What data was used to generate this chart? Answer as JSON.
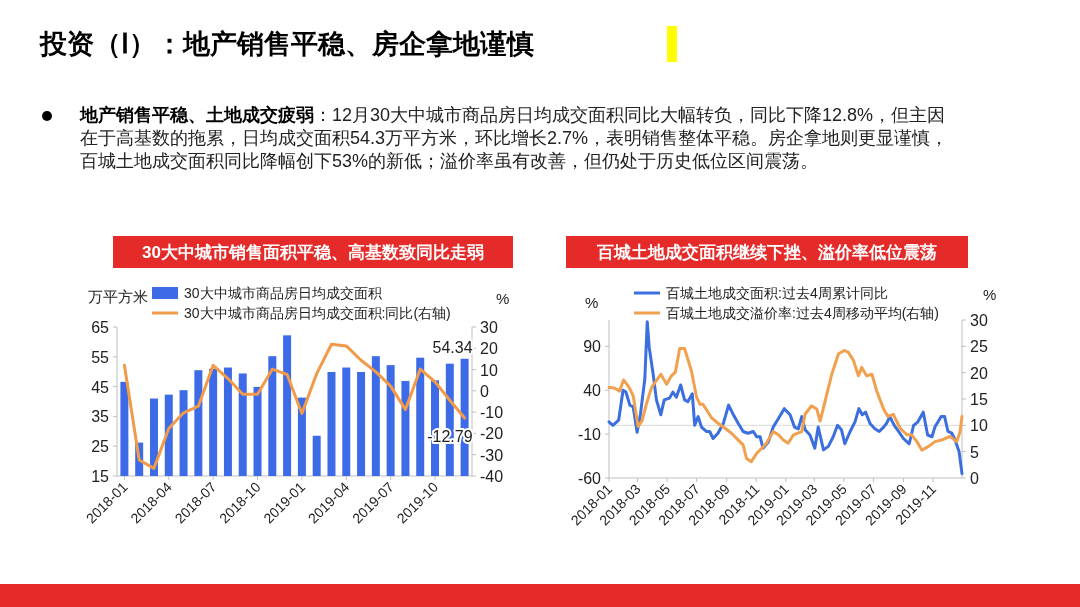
{
  "chart_data": [
    {
      "type": "other",
      "title": "投资（Ⅰ）：地产销售平稳、房企拿地谨慎",
      "annotations": [
        "地产销售平稳、土地成交疲弱",
        "：12月30大中城市商品房日均成交面积同比大幅转负，同比下降12.8%，但主因在于高基数的拖累，日均成交面积54.3万平方米，环比增长2.7%，表明销售整体平稳。房企拿地则更显谨慎，百城土地成交面积同比降幅创下53%的新低；溢价率虽有改善，但仍处于历史低位区间震荡。"
      ]
    },
    {
      "type": "bar",
      "title": "30大中城市销售面积平稳、高基数致同比走弱",
      "ylabel": "万平方米",
      "y2label": "%",
      "legend": "top",
      "categories": [
        "2018-01",
        null,
        null,
        "2018-04",
        null,
        null,
        "2018-07",
        null,
        null,
        "2018-10",
        null,
        null,
        "2019-01",
        null,
        null,
        "2019-04",
        null,
        null,
        "2019-07",
        null,
        null,
        "2019-10",
        null,
        null
      ],
      "ylim": [
        15,
        65
      ],
      "yticks": [
        15,
        25,
        35,
        45,
        55,
        65
      ],
      "y2lim": [
        -40,
        30
      ],
      "y2ticks": [
        -40,
        -30,
        -20,
        -10,
        0,
        10,
        20,
        30
      ],
      "series": [
        {
          "name": "30大中城市商品房日均成交面积",
          "type": "bar",
          "color": "#3d6ae6",
          "values": [
            46.6,
            26.2,
            41,
            42.3,
            43.8,
            50.5,
            51,
            51.4,
            49.4,
            44.9,
            55.2,
            62.2,
            41.3,
            28.5,
            49.9,
            51.4,
            49.9,
            55.2,
            52.2,
            46.9,
            54.7,
            47.1,
            52.7,
            54.34
          ],
          "value_labels": [
            null,
            null,
            null,
            null,
            null,
            null,
            null,
            null,
            null,
            null,
            null,
            null,
            null,
            null,
            null,
            null,
            null,
            null,
            null,
            null,
            null,
            null,
            null,
            "54.34"
          ]
        },
        {
          "name": "30大中城市商品房日均成交面积:同比(右轴)",
          "type": "line",
          "axis": "y2",
          "color": "#f09a4a",
          "values": [
            12,
            -32.5,
            -36.4,
            -17.7,
            -10.3,
            -7.2,
            12,
            5.8,
            -1.6,
            -1.6,
            10.2,
            7.7,
            -10.6,
            8.1,
            21.9,
            21.1,
            14.4,
            8.9,
            2.2,
            -8.8,
            10.2,
            4.2,
            -4.4,
            -12.79
          ],
          "value_labels": [
            null,
            null,
            null,
            null,
            null,
            null,
            null,
            null,
            null,
            null,
            null,
            null,
            null,
            null,
            null,
            null,
            null,
            null,
            null,
            null,
            null,
            null,
            null,
            "-12.79"
          ]
        }
      ]
    },
    {
      "type": "line",
      "title": "百城土地成交面积继续下挫、溢价率低位震荡",
      "ylabel": "%",
      "y2label": "%",
      "legend": "top",
      "xlim": [
        "2018-01-01",
        "2019-12-31"
      ],
      "xticks": [
        {
          "value": "2018-01-01",
          "label": "2018-01"
        },
        {
          "value": "2018-03-01",
          "label": "2018-03"
        },
        {
          "value": "2018-05-01",
          "label": "2018-05"
        },
        {
          "value": "2018-07-01",
          "label": "2018-07"
        },
        {
          "value": "2018-09-01",
          "label": "2018-09"
        },
        {
          "value": "2018-11-01",
          "label": "2018-11"
        },
        {
          "value": "2019-01-01",
          "label": "2019-01"
        },
        {
          "value": "2019-03-01",
          "label": "2019-03"
        },
        {
          "value": "2019-05-01",
          "label": "2019-05"
        },
        {
          "value": "2019-07-01",
          "label": "2019-07"
        },
        {
          "value": "2019-09-01",
          "label": "2019-09"
        },
        {
          "value": "2019-11-01",
          "label": "2019-11"
        }
      ],
      "ylim": [
        -60,
        120
      ],
      "yticks": [
        -60,
        -10,
        40,
        90
      ],
      "y2lim": [
        0,
        30
      ],
      "y2ticks": [
        0,
        5,
        10,
        15,
        20,
        25,
        30
      ],
      "ref_lines": [
        {
          "axis": "y",
          "value": 0,
          "color": "#d9d9d9"
        }
      ],
      "series": [
        {
          "name": "百城土地成交面积:过去4周累计同比",
          "color": "#3b6fe0",
          "x": [
            "2018-01-01",
            "2018-01-09",
            "2018-01-21",
            "2018-01-30",
            "2018-02-05",
            "2018-02-13",
            "2018-02-20",
            "2018-02-28",
            "2018-03-07",
            "2018-03-16",
            "2018-03-21",
            "2018-03-25",
            "2018-04-02",
            "2018-04-09",
            "2018-04-18",
            "2018-04-25",
            "2018-05-06",
            "2018-05-13",
            "2018-05-20",
            "2018-05-29",
            "2018-06-06",
            "2018-06-13",
            "2018-06-22",
            "2018-06-27",
            "2018-07-04",
            "2018-07-11",
            "2018-07-21",
            "2018-07-28",
            "2018-08-04",
            "2018-08-14",
            "2018-08-25",
            "2018-09-05",
            "2018-09-14",
            "2018-09-25",
            "2018-10-05",
            "2018-10-15",
            "2018-10-26",
            "2018-11-02",
            "2018-11-09",
            "2018-11-15",
            "2018-11-26",
            "2018-12-06",
            "2018-12-15",
            "2018-12-29",
            "2019-01-10",
            "2019-01-19",
            "2019-01-27",
            "2019-02-03",
            "2019-02-10",
            "2019-02-20",
            "2019-03-02",
            "2019-03-09",
            "2019-03-20",
            "2019-03-30",
            "2019-04-09",
            "2019-04-18",
            "2019-04-26",
            "2019-05-03",
            "2019-05-14",
            "2019-05-24",
            "2019-06-01",
            "2019-06-08",
            "2019-06-15",
            "2019-06-24",
            "2019-07-04",
            "2019-07-13",
            "2019-07-22",
            "2019-07-28",
            "2019-08-04",
            "2019-08-13",
            "2019-08-22",
            "2019-09-01",
            "2019-09-13",
            "2019-09-22",
            "2019-10-01",
            "2019-10-12",
            "2019-10-21",
            "2019-10-30",
            "2019-11-05",
            "2019-11-18",
            "2019-11-25",
            "2019-12-02",
            "2019-12-10",
            "2019-12-17",
            "2019-12-25",
            "2019-12-31"
          ],
          "values": [
            4,
            0,
            6,
            40,
            38,
            23,
            21,
            -8,
            13,
            53,
            118,
            89,
            59,
            29,
            12,
            29,
            31,
            38,
            32,
            46,
            29,
            27,
            36,
            0,
            10,
            -2,
            -7,
            -7,
            -15,
            -9,
            2,
            23,
            13,
            2,
            -7,
            -9,
            -7,
            -13,
            -13,
            -26,
            -19,
            -2,
            6,
            19,
            12,
            -2,
            -4,
            10,
            -5,
            -11,
            -26,
            -2,
            -28,
            -24,
            -13,
            0,
            -5,
            -21,
            -7,
            4,
            19,
            12,
            15,
            2,
            -4,
            -7,
            -2,
            2,
            10,
            0,
            -7,
            -15,
            -21,
            0,
            4,
            15,
            -11,
            -13,
            -2,
            10,
            10,
            -7,
            -9,
            -17,
            -30,
            -55
          ]
        },
        {
          "name": "百城土地成交溢价率:过去4周移动平均(右轴)",
          "axis": "y2",
          "color": "#f0a04f",
          "x": [
            "2018-01-01",
            "2018-01-12",
            "2018-01-23",
            "2018-01-31",
            "2018-02-11",
            "2018-02-20",
            "2018-03-02",
            "2018-03-10",
            "2018-03-19",
            "2018-03-30",
            "2018-04-18",
            "2018-04-30",
            "2018-05-10",
            "2018-05-18",
            "2018-05-27",
            "2018-06-06",
            "2018-06-20",
            "2018-07-01",
            "2018-07-08",
            "2018-07-14",
            "2018-08-01",
            "2018-08-14",
            "2018-08-28",
            "2018-09-11",
            "2018-09-25",
            "2018-10-05",
            "2018-10-12",
            "2018-10-22",
            "2018-11-02",
            "2018-11-12",
            "2018-11-22",
            "2018-12-06",
            "2018-12-17",
            "2018-12-27",
            "2019-01-06",
            "2019-01-17",
            "2019-02-03",
            "2019-02-10",
            "2019-02-23",
            "2019-03-06",
            "2019-03-13",
            "2019-03-26",
            "2019-04-06",
            "2019-04-20",
            "2019-05-02",
            "2019-05-10",
            "2019-05-21",
            "2019-05-31",
            "2019-06-07",
            "2019-06-17",
            "2019-06-28",
            "2019-07-08",
            "2019-07-22",
            "2019-07-31",
            "2019-08-11",
            "2019-08-25",
            "2019-09-08",
            "2019-09-18",
            "2019-09-29",
            "2019-10-09",
            "2019-10-23",
            "2019-11-05",
            "2019-11-19",
            "2019-12-06",
            "2019-12-20",
            "2019-12-27",
            "2019-12-31"
          ],
          "values": [
            17.2,
            17.1,
            16.5,
            18.6,
            17.3,
            15.6,
            9.8,
            10.8,
            14,
            17.2,
            19.7,
            17.8,
            19.4,
            20.1,
            24.6,
            24.6,
            20.4,
            15.3,
            14,
            14,
            11.4,
            10.4,
            9.5,
            8.5,
            7.2,
            6.3,
            3.7,
            3.1,
            4.7,
            5.6,
            6.6,
            8.8,
            8.2,
            7.2,
            6.6,
            8.2,
            8.8,
            12.1,
            13.7,
            13.1,
            10.8,
            15.6,
            19.7,
            23.6,
            24.2,
            23.9,
            22.3,
            19.4,
            21,
            19.4,
            19.7,
            16.5,
            13.1,
            11.7,
            12.1,
            9.5,
            8.2,
            8.2,
            6.9,
            5.3,
            6,
            6.9,
            7.2,
            7.9,
            6.9,
            8.8,
            11.7
          ]
        }
      ]
    }
  ]
}
